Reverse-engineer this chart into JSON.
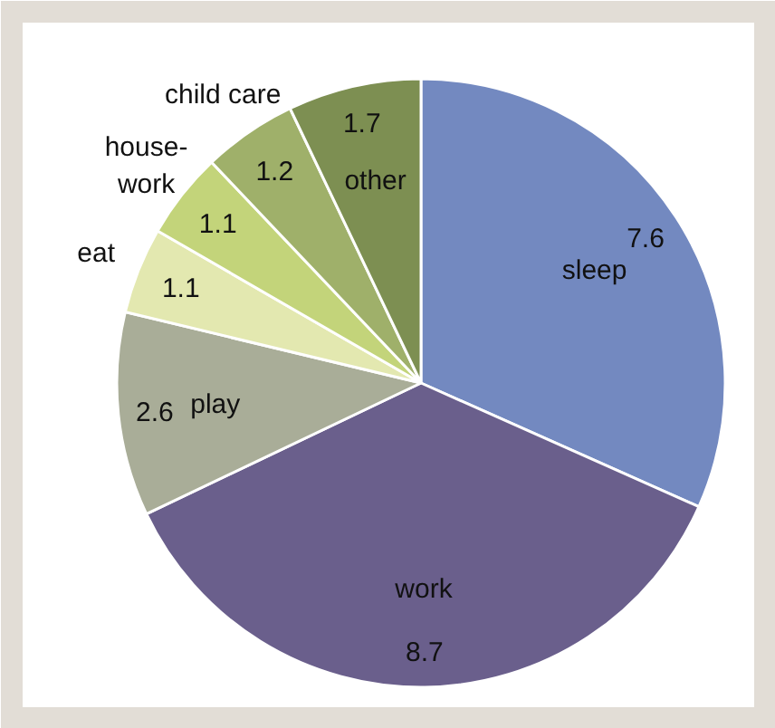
{
  "chart_data": {
    "type": "pie",
    "categories": [
      "sleep",
      "work",
      "play",
      "eat",
      "house-\nwork",
      "child care",
      "other"
    ],
    "values": [
      7.6,
      8.7,
      2.6,
      1.1,
      1.1,
      1.2,
      1.7
    ],
    "colors": [
      "#7389c0",
      "#6a5f8c",
      "#a9ad98",
      "#e3e8b0",
      "#c3d47a",
      "#9fb06a",
      "#7d8f52"
    ],
    "data_labels": true
  }
}
